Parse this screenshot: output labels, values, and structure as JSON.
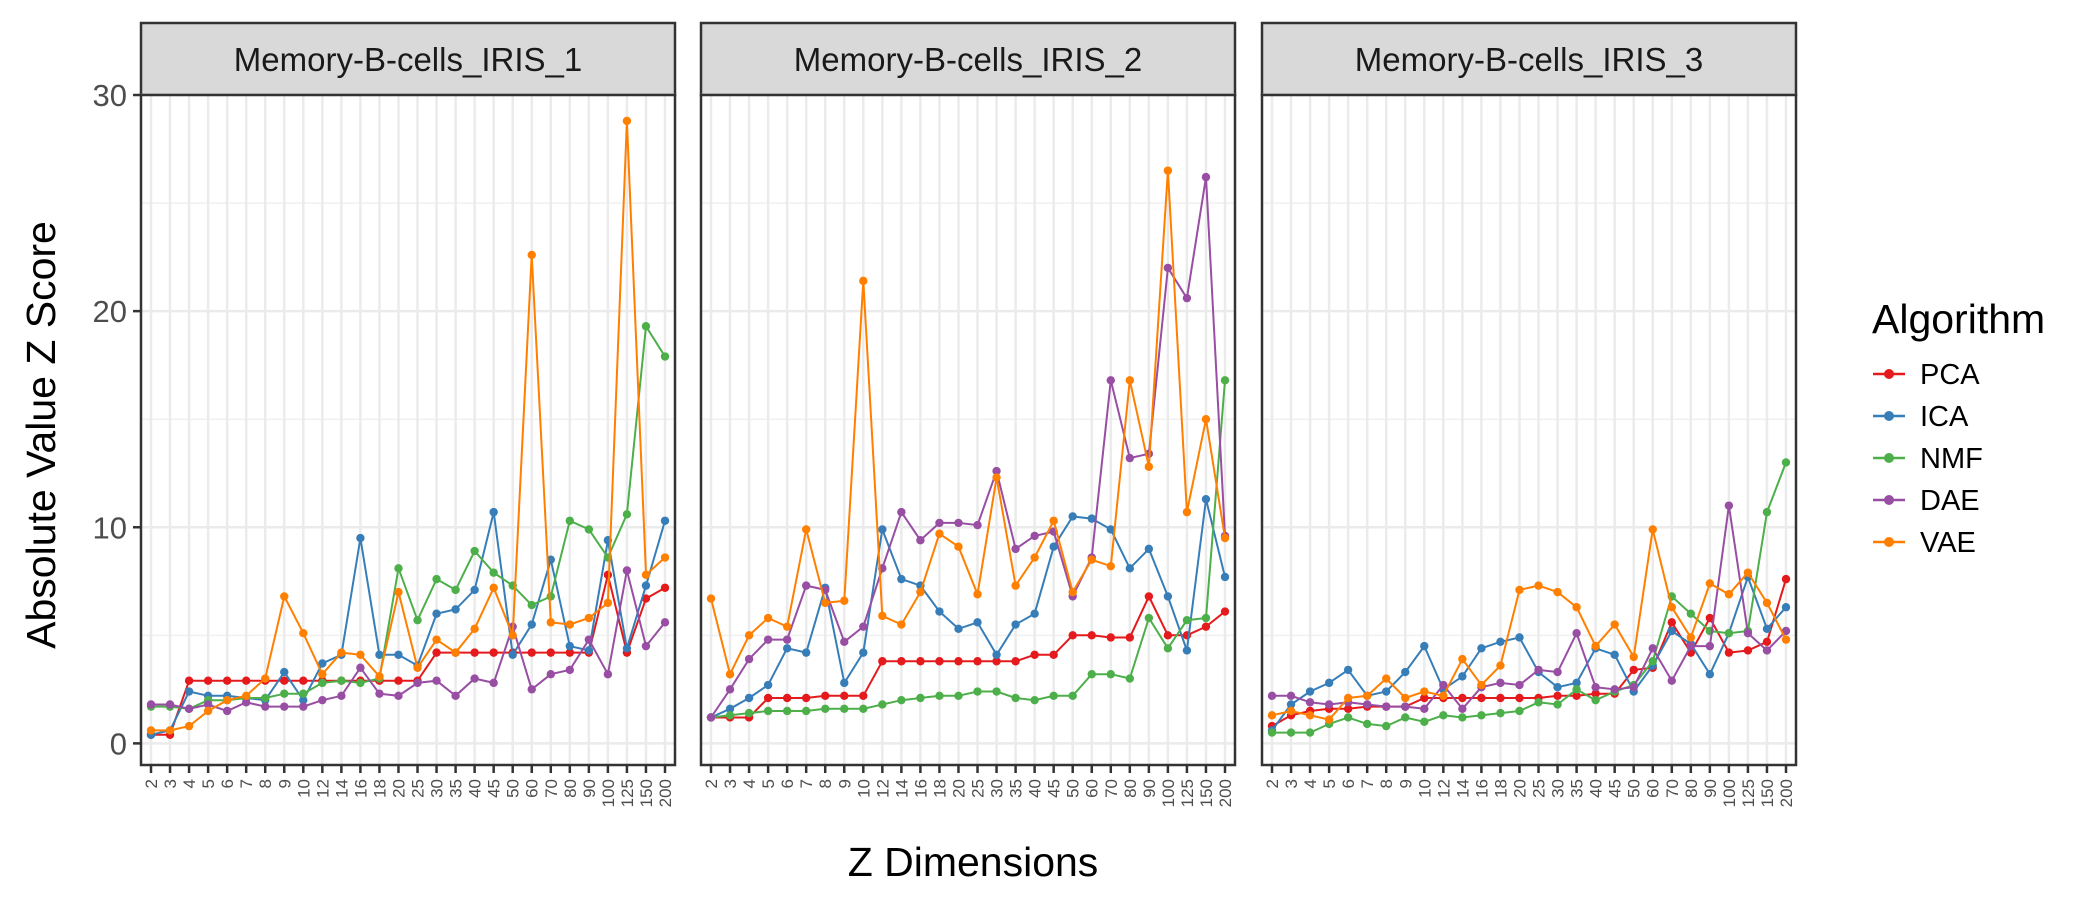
{
  "chart_data": {
    "type": "line",
    "facets": [
      "Memory-B-cells_IRIS_1",
      "Memory-B-cells_IRIS_2",
      "Memory-B-cells_IRIS_3"
    ],
    "x": [
      "2",
      "3",
      "4",
      "5",
      "6",
      "7",
      "8",
      "9",
      "10",
      "12",
      "14",
      "16",
      "18",
      "20",
      "25",
      "30",
      "35",
      "40",
      "45",
      "50",
      "60",
      "70",
      "80",
      "90",
      "100",
      "125",
      "150",
      "200"
    ],
    "xlabel": "Z Dimensions",
    "ylabel": "Absolute Value Z Score",
    "ylim": [
      -1,
      30
    ],
    "yticks": [
      0,
      10,
      20,
      30
    ],
    "grid": true,
    "legend": {
      "title": "Algorithm",
      "placement": "right",
      "entries": [
        {
          "name": "PCA",
          "color": "#e41a1c"
        },
        {
          "name": "ICA",
          "color": "#377eb8"
        },
        {
          "name": "NMF",
          "color": "#4daf4a"
        },
        {
          "name": "DAE",
          "color": "#984ea3"
        },
        {
          "name": "VAE",
          "color": "#ff7f00"
        }
      ]
    },
    "panels": [
      {
        "facet": "Memory-B-cells_IRIS_1",
        "series": [
          {
            "name": "PCA",
            "values": [
              0.4,
              0.4,
              2.9,
              2.9,
              2.9,
              2.9,
              2.9,
              2.9,
              2.9,
              2.9,
              2.9,
              2.9,
              2.9,
              2.9,
              2.9,
              4.2,
              4.2,
              4.2,
              4.2,
              4.2,
              4.2,
              4.2,
              4.2,
              4.2,
              7.8,
              4.2,
              6.7,
              7.2
            ]
          },
          {
            "name": "ICA",
            "values": [
              0.4,
              0.6,
              2.4,
              2.2,
              2.2,
              2.1,
              2.0,
              3.3,
              2.0,
              3.7,
              4.1,
              9.5,
              4.1,
              4.1,
              3.6,
              6.0,
              6.2,
              7.1,
              10.7,
              4.1,
              5.5,
              8.5,
              4.5,
              4.3,
              9.4,
              4.4,
              7.3,
              10.3
            ]
          },
          {
            "name": "NMF",
            "values": [
              1.7,
              1.7,
              1.6,
              2.0,
              2.0,
              2.1,
              2.1,
              2.3,
              2.3,
              2.8,
              2.9,
              2.8,
              3.0,
              8.1,
              5.7,
              7.6,
              7.1,
              8.9,
              7.9,
              7.3,
              6.4,
              6.8,
              10.3,
              9.9,
              8.6,
              10.6,
              19.3,
              17.9
            ]
          },
          {
            "name": "DAE",
            "values": [
              1.8,
              1.8,
              1.6,
              1.8,
              1.5,
              1.9,
              1.7,
              1.7,
              1.7,
              2.0,
              2.2,
              3.5,
              2.3,
              2.2,
              2.8,
              2.9,
              2.2,
              3.0,
              2.8,
              5.4,
              2.5,
              3.2,
              3.4,
              4.8,
              3.2,
              8.0,
              4.5,
              5.6
            ]
          },
          {
            "name": "VAE",
            "values": [
              0.6,
              0.6,
              0.8,
              1.5,
              2.0,
              2.2,
              3.0,
              6.8,
              5.1,
              3.2,
              4.2,
              4.1,
              3.1,
              7.0,
              3.5,
              4.8,
              4.2,
              5.3,
              7.2,
              5.0,
              22.6,
              5.6,
              5.5,
              5.8,
              6.5,
              28.8,
              7.8,
              8.6
            ]
          }
        ]
      },
      {
        "facet": "Memory-B-cells_IRIS_2",
        "series": [
          {
            "name": "PCA",
            "values": [
              1.2,
              1.2,
              1.2,
              2.1,
              2.1,
              2.1,
              2.2,
              2.2,
              2.2,
              3.8,
              3.8,
              3.8,
              3.8,
              3.8,
              3.8,
              3.8,
              3.8,
              4.1,
              4.1,
              5.0,
              5.0,
              4.9,
              4.9,
              6.8,
              5.0,
              5.0,
              5.4,
              6.1
            ]
          },
          {
            "name": "ICA",
            "values": [
              1.2,
              1.6,
              2.1,
              2.7,
              4.4,
              4.2,
              7.2,
              2.8,
              4.2,
              9.9,
              7.6,
              7.3,
              6.1,
              5.3,
              5.6,
              4.1,
              5.5,
              6.0,
              9.1,
              10.5,
              10.4,
              9.9,
              8.1,
              9.0,
              6.8,
              4.3,
              11.3,
              7.7
            ]
          },
          {
            "name": "NMF",
            "values": [
              1.2,
              1.3,
              1.4,
              1.5,
              1.5,
              1.5,
              1.6,
              1.6,
              1.6,
              1.8,
              2.0,
              2.1,
              2.2,
              2.2,
              2.4,
              2.4,
              2.1,
              2.0,
              2.2,
              2.2,
              3.2,
              3.2,
              3.0,
              5.8,
              4.4,
              5.7,
              5.8,
              16.8
            ]
          },
          {
            "name": "DAE",
            "values": [
              1.2,
              2.5,
              3.9,
              4.8,
              4.8,
              7.3,
              7.1,
              4.7,
              5.4,
              8.1,
              10.7,
              9.4,
              10.2,
              10.2,
              10.1,
              12.6,
              9.0,
              9.6,
              9.8,
              6.8,
              8.6,
              16.8,
              13.2,
              13.4,
              22.0,
              20.6,
              26.2,
              9.6
            ]
          },
          {
            "name": "VAE",
            "values": [
              6.7,
              3.2,
              5.0,
              5.8,
              5.4,
              9.9,
              6.5,
              6.6,
              21.4,
              5.9,
              5.5,
              7.0,
              9.7,
              9.1,
              6.9,
              12.3,
              7.3,
              8.6,
              10.3,
              7.0,
              8.5,
              8.2,
              16.8,
              12.8,
              26.5,
              10.7,
              15.0,
              9.5
            ]
          }
        ]
      },
      {
        "facet": "Memory-B-cells_IRIS_3",
        "series": [
          {
            "name": "PCA",
            "values": [
              0.8,
              1.3,
              1.5,
              1.6,
              1.6,
              1.7,
              1.7,
              1.7,
              2.1,
              2.1,
              2.1,
              2.1,
              2.1,
              2.1,
              2.1,
              2.2,
              2.2,
              2.3,
              2.3,
              3.4,
              3.5,
              5.6,
              4.2,
              5.8,
              4.2,
              4.3,
              4.7,
              7.6
            ]
          },
          {
            "name": "ICA",
            "values": [
              0.6,
              1.8,
              2.4,
              2.8,
              3.4,
              2.2,
              2.4,
              3.3,
              4.5,
              2.5,
              3.1,
              4.4,
              4.7,
              4.9,
              3.3,
              2.6,
              2.8,
              4.4,
              4.1,
              2.4,
              3.6,
              5.2,
              4.6,
              3.2,
              5.1,
              7.7,
              5.3,
              6.3
            ]
          },
          {
            "name": "NMF",
            "values": [
              0.5,
              0.5,
              0.5,
              0.9,
              1.2,
              0.9,
              0.8,
              1.2,
              1.0,
              1.3,
              1.2,
              1.3,
              1.4,
              1.5,
              1.9,
              1.8,
              2.5,
              2.0,
              2.4,
              2.7,
              3.8,
              6.8,
              6.0,
              5.2,
              5.1,
              5.2,
              10.7,
              13.0
            ]
          },
          {
            "name": "DAE",
            "values": [
              2.2,
              2.2,
              1.9,
              1.8,
              1.9,
              1.8,
              1.7,
              1.7,
              1.6,
              2.7,
              1.6,
              2.6,
              2.8,
              2.7,
              3.4,
              3.3,
              5.1,
              2.6,
              2.5,
              2.6,
              4.4,
              2.9,
              4.5,
              4.5,
              11.0,
              5.1,
              4.3,
              5.2
            ]
          },
          {
            "name": "VAE",
            "values": [
              1.3,
              1.5,
              1.3,
              1.1,
              2.1,
              2.2,
              3.0,
              2.1,
              2.4,
              2.2,
              3.9,
              2.7,
              3.6,
              7.1,
              7.3,
              7.0,
              6.3,
              4.5,
              5.5,
              4.0,
              9.9,
              6.3,
              4.9,
              7.4,
              6.9,
              7.9,
              6.5,
              4.8
            ]
          }
        ]
      }
    ]
  }
}
